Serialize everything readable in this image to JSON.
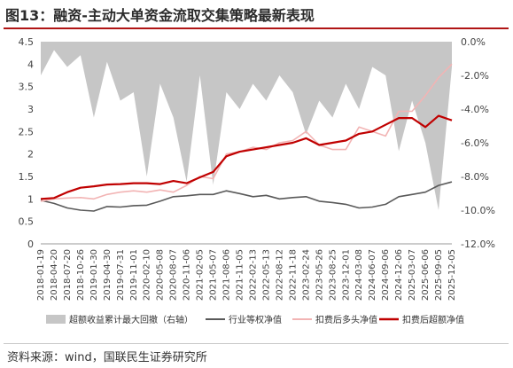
{
  "title": "图13：融资-主动大单资金流取交集策略最新表现",
  "source": "资料来源：wind，国联民生证券研究所",
  "colors": {
    "title_rule": "#b01515",
    "drawdown": "#c6c6c6",
    "industry": "#595959",
    "long_net": "#f2b4b4",
    "excess_net": "#c00000"
  },
  "chart_data": {
    "type": "line",
    "title": "",
    "x": [
      "2018-01-19",
      "2018-04-20",
      "2018-07-20",
      "2018-10-26",
      "2019-01-30",
      "2019-04-30",
      "2019-07-31",
      "2019-11-01",
      "2020-02-10",
      "2020-05-08",
      "2020-08-07",
      "2020-11-06",
      "2021-02-05",
      "2021-05-07",
      "2021-08-06",
      "2021-11-05",
      "2022-02-13",
      "2022-05-13",
      "2022-08-12",
      "2022-11-18",
      "2023-02-24",
      "2023-05-26",
      "2023-08-25",
      "2023-12-01",
      "2024-03-08",
      "2024-06-07",
      "2024-09-06",
      "2024-12-06",
      "2025-03-07",
      "2025-06-06",
      "2025-09-05",
      "2025-12-05"
    ],
    "x_tick_labels": [
      "2018-01-19",
      "2018-04-20",
      "2018-07-20",
      "2018-10-26",
      "2019-01-30",
      "2019-04-30",
      "2019-07-31",
      "2019-11-01",
      "2020-02-10",
      "2020-05-08",
      "2020-08-07",
      "2020-11-06",
      "2021-02-05",
      "2021-05-07",
      "2021-08-06",
      "2021-11-05",
      "2022-02-13",
      "2022-05-13",
      "2022-08-12",
      "2022-11-18",
      "2023-02-24",
      "2023-05-26",
      "2023-08-25",
      "2023-12-01",
      "2024-03-08",
      "2024-06-07",
      "2024-09-06",
      "2024-12-06",
      "2025-03-07",
      "2025-06-06",
      "2025-09-05",
      "2025-12-05"
    ],
    "y_left": {
      "range": [
        0,
        4.5
      ],
      "ticks": [
        "0",
        "0.5",
        "1",
        "1.5",
        "2",
        "2.5",
        "3",
        "3.5",
        "4",
        "4.5"
      ]
    },
    "y_right": {
      "range": [
        -12.0,
        0.0
      ],
      "ticks": [
        "0.0%",
        "-2.0%",
        "-4.0%",
        "-6.0%",
        "-8.0%",
        "-10.0%",
        "-12.0%"
      ]
    },
    "grid": false,
    "legend_position": "bottom",
    "series": [
      {
        "name": "超额收益累计最大回撤（右轴）",
        "type": "area",
        "axis": "right",
        "values": [
          -2.0,
          -0.5,
          -1.5,
          -0.8,
          -4.5,
          -1.2,
          -3.5,
          -3.0,
          -8.0,
          -2.5,
          -4.5,
          -8.3,
          -2.0,
          -8.5,
          -3.0,
          -4.0,
          -2.5,
          -3.5,
          -2.0,
          -3.0,
          -5.5,
          -3.5,
          -4.5,
          -2.5,
          -4.0,
          -1.5,
          -2.0,
          -6.5,
          -3.5,
          -6.0,
          -10.0,
          -1.5
        ]
      },
      {
        "name": "行业等权净值",
        "type": "line",
        "axis": "left",
        "values": [
          0.97,
          0.9,
          0.8,
          0.75,
          0.73,
          0.83,
          0.82,
          0.85,
          0.86,
          0.95,
          1.05,
          1.07,
          1.1,
          1.1,
          1.18,
          1.12,
          1.05,
          1.08,
          1.0,
          1.03,
          1.05,
          0.95,
          0.92,
          0.88,
          0.8,
          0.82,
          0.88,
          1.05,
          1.1,
          1.15,
          1.3,
          1.38
        ]
      },
      {
        "name": "扣费后多头净值",
        "type": "line",
        "axis": "left",
        "values": [
          0.95,
          1.0,
          1.02,
          1.03,
          1.0,
          1.1,
          1.15,
          1.18,
          1.15,
          1.2,
          1.15,
          1.3,
          1.5,
          1.45,
          2.0,
          2.05,
          2.15,
          2.1,
          2.25,
          2.3,
          2.5,
          2.2,
          2.1,
          2.1,
          2.6,
          2.5,
          2.4,
          2.95,
          2.95,
          3.3,
          3.7,
          4.0
        ]
      },
      {
        "name": "扣费后超额净值",
        "type": "line",
        "axis": "left",
        "values": [
          1.0,
          1.02,
          1.15,
          1.25,
          1.28,
          1.32,
          1.33,
          1.35,
          1.35,
          1.33,
          1.4,
          1.35,
          1.48,
          1.6,
          1.95,
          2.05,
          2.1,
          2.15,
          2.2,
          2.25,
          2.35,
          2.2,
          2.25,
          2.3,
          2.45,
          2.5,
          2.65,
          2.8,
          2.8,
          2.6,
          2.85,
          2.75
        ]
      }
    ]
  }
}
